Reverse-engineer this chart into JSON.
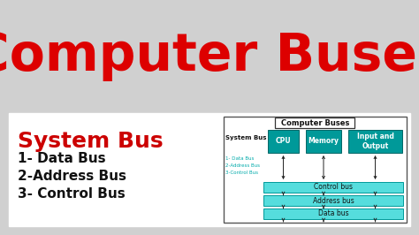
{
  "bg_color": "#d0d0d0",
  "white_panel_color": "#ffffff",
  "title_text": "Computer Buses",
  "title_color": "#dd0000",
  "title_fontsize": 42,
  "system_bus_text": "System Bus",
  "system_bus_color": "#cc0000",
  "system_bus_fontsize": 18,
  "items": [
    "1- Data Bus",
    "2-Address Bus",
    "3- Control Bus"
  ],
  "items_color": "#111111",
  "items_fontsize": 11,
  "diagram_title": "Computer Buses",
  "teal_dark": "#009999",
  "teal_light": "#55dddd",
  "cpu_label": "CPU",
  "memory_label": "Memory",
  "io_label": "Input and\nOutput",
  "bus_labels": [
    "Control bus",
    "Address bus",
    "Data bus"
  ],
  "diagram_system_bus_label": "System Bus",
  "diagram_items": [
    "1- Data Bus",
    "2-Address Bus",
    "3-Control Bus"
  ],
  "diagram_small_text_color": "#00aaaa",
  "arrow_color": "#222222"
}
